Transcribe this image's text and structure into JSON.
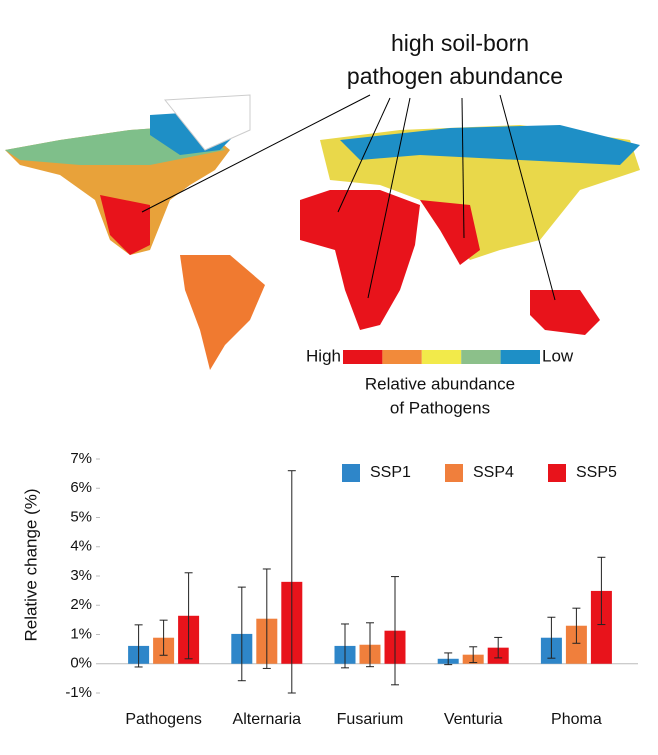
{
  "map": {
    "annotation": [
      "high soil-born",
      "pathogen abundance"
    ],
    "legend": {
      "high": "High",
      "low": "Low",
      "title": [
        "Relative abundance",
        "of Pathogens"
      ],
      "colors": [
        "#e8131b",
        "#f28a3a",
        "#f2ea4a",
        "#8cc08a",
        "#1e8fc6"
      ]
    }
  },
  "chart_data": {
    "type": "bar",
    "y_label": "Relative change (%)",
    "categories": [
      "Pathogens",
      "Alternaria",
      "Fusarium",
      "Venturia",
      "Phoma"
    ],
    "series": [
      {
        "name": "SSP1",
        "color": "#2e86c9",
        "values": [
          0.61,
          1.02,
          0.61,
          0.17,
          0.89
        ],
        "errors": [
          0.72,
          1.6,
          0.75,
          0.2,
          0.7
        ]
      },
      {
        "name": "SSP4",
        "color": "#f07f3c",
        "values": [
          0.89,
          1.54,
          0.65,
          0.31,
          1.3
        ],
        "errors": [
          0.6,
          1.7,
          0.75,
          0.27,
          0.6
        ]
      },
      {
        "name": "SSP5",
        "color": "#e8131b",
        "values": [
          1.64,
          2.8,
          1.13,
          0.55,
          2.49
        ],
        "errors": [
          1.47,
          3.8,
          1.85,
          0.35,
          1.15
        ]
      }
    ],
    "ylim": [
      -1,
      7
    ],
    "yticks": [
      {
        "value": -1,
        "label": "-1%"
      },
      {
        "value": 0,
        "label": "0%"
      },
      {
        "value": 1,
        "label": "1%"
      },
      {
        "value": 2,
        "label": "2%"
      },
      {
        "value": 3,
        "label": "3%"
      },
      {
        "value": 4,
        "label": "4%"
      },
      {
        "value": 5,
        "label": "5%"
      },
      {
        "value": 6,
        "label": "6%"
      },
      {
        "value": 7,
        "label": "7%"
      }
    ],
    "legend": "upper right"
  }
}
